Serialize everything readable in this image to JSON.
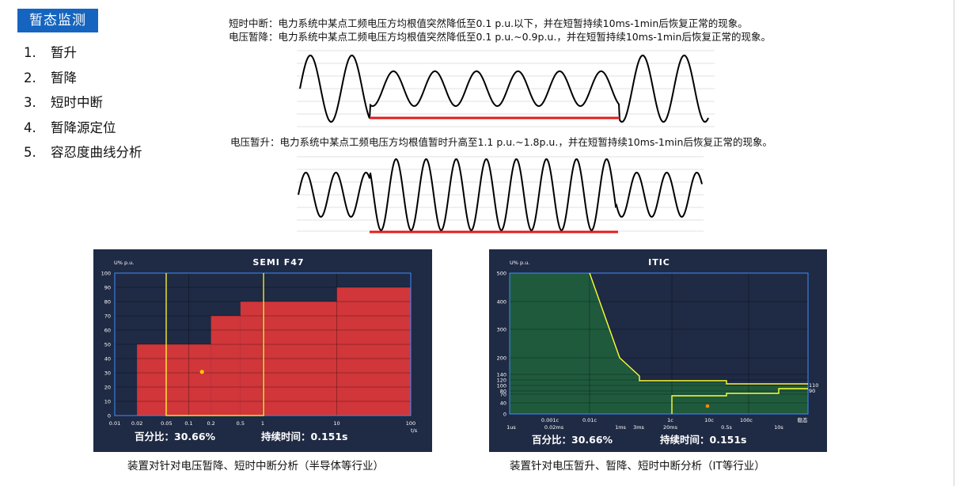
{
  "title": "暂态监测",
  "menu": [
    {
      "num": "1.",
      "label": "暂升"
    },
    {
      "num": "2.",
      "label": "暂降"
    },
    {
      "num": "3.",
      "label": "短时中断"
    },
    {
      "num": "4.",
      "label": "暂降源定位"
    },
    {
      "num": "5.",
      "label": "容忍度曲线分析"
    }
  ],
  "definitions": {
    "interruption": "短时中断：电力系统中某点工频电压方均根值突然降低至0.1 p.u.以下，并在短暂持续10ms-1min后恢复正常的现象。",
    "sag": "电压暂降：电力系统中某点工频电压方均根值突然降低至0.1 p.u.~0.9p.u.，并在短暂持续10ms-1min后恢复正常的现象。",
    "swell": "电压暂升：电力系统中某点工频电压方均根值暂时升高至1.1 p.u.~1.8p.u.，并在短暂持续10ms-1min后恢复正常的现象。"
  },
  "colors": {
    "panel_bg": "#1f2a44",
    "fill_red": "#d0363a",
    "fill_green": "#1f5a3d",
    "yellow": "#ffff33",
    "axis_blue": "#3c8cff",
    "marker_red": "#e31b1b",
    "title_blue": "#1565c0"
  },
  "semi": {
    "title": "SEMI  F47",
    "ylabel": "U% p.u.",
    "xlabel": "t/s",
    "yticks": [
      "100",
      "90",
      "80",
      "70",
      "60",
      "50",
      "40",
      "30",
      "20",
      "10",
      "0"
    ],
    "xticks": [
      "0.01",
      "0.02",
      "0.05",
      "0.1",
      "0.2",
      "0.5",
      "1",
      "10",
      "100"
    ],
    "stat1": "百分比：30.66%",
    "stat2": "持续时间：0.151s",
    "caption": "装置对针对电压暂降、短时中断分析（半导体等行业）"
  },
  "itic": {
    "title": "ITIC",
    "ylabel": "U% p.u.",
    "yticks": [
      "500",
      "400",
      "300",
      "200",
      "140",
      "120",
      "100",
      "80",
      "70",
      "40",
      "0"
    ],
    "xticks_top": [
      "0.001c",
      "0.01c",
      "1c",
      "10c",
      "100c",
      "稳态"
    ],
    "xticks_bottom": [
      "1us",
      "0.02ms",
      "1ms",
      "3ms",
      "20ms",
      "0.5s",
      "10s"
    ],
    "right_labels": [
      "110",
      "90"
    ],
    "stat1": "百分比：30.66%",
    "stat2": "持续时间：0.151s",
    "caption": "装置针对电压暂升、暂降、短时中断分析（IT等行业）"
  },
  "chart_data": [
    {
      "type": "area",
      "title": "SEMI  F47",
      "ylabel": "U% p.u.",
      "xlabel": "t/s",
      "x_scale": "log",
      "xlim": [
        0.01,
        100
      ],
      "ylim": [
        0,
        100
      ],
      "grid": true,
      "tolerance_curve": [
        {
          "t_from": 0.02,
          "t_to": 0.2,
          "percent": 50
        },
        {
          "t_from": 0.2,
          "t_to": 0.5,
          "percent": 70
        },
        {
          "t_from": 0.5,
          "t_to": 10,
          "percent": 80
        },
        {
          "t_from": 10,
          "t_to": 100,
          "percent": 90
        }
      ],
      "event_point": {
        "t": 0.151,
        "percent": 30.66
      }
    },
    {
      "type": "area",
      "title": "ITIC",
      "ylabel": "U% p.u.",
      "x_scale": "log",
      "ylim": [
        0,
        500
      ],
      "grid": true,
      "upper_curve": [
        {
          "cycles": 0.01,
          "percent": 500
        },
        {
          "cycles": 0.1,
          "percent": 200
        },
        {
          "cycles": 0.18,
          "percent": 140
        },
        {
          "cycles": 0.18,
          "percent": 120
        },
        {
          "cycles": 30,
          "percent": 120
        },
        {
          "cycles": 30,
          "percent": 110
        },
        {
          "cycles": "稳态",
          "percent": 110
        }
      ],
      "lower_curve": [
        {
          "cycles": 1.2,
          "percent": 0
        },
        {
          "cycles": 1.2,
          "percent": 70
        },
        {
          "cycles": 30,
          "percent": 70
        },
        {
          "cycles": 30,
          "percent": 80
        },
        {
          "cycles": 500,
          "percent": 80
        },
        {
          "cycles": 500,
          "percent": 90
        },
        {
          "cycles": "稳态",
          "percent": 90
        }
      ],
      "event_point": {
        "t": 0.151,
        "percent": 30.66
      }
    }
  ]
}
